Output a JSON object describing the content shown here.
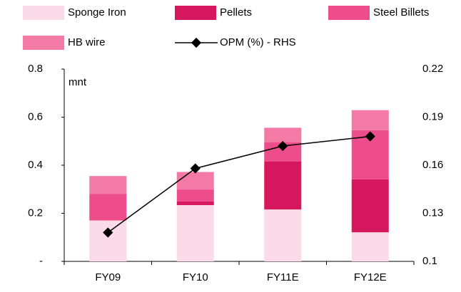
{
  "chart_data": {
    "type": "bar",
    "stacked": true,
    "annotation": "mnt",
    "categories": [
      "FY09",
      "FY10",
      "FY11E",
      "FY12E"
    ],
    "series": [
      {
        "name": "Sponge Iron",
        "color": "#fbdbe7",
        "values": [
          0.17,
          0.234,
          0.216,
          0.121
        ]
      },
      {
        "name": "Pellets",
        "color": "#d6175e",
        "values": [
          0,
          0.015,
          0.2,
          0.22
        ]
      },
      {
        "name": "Steel Billets",
        "color": "#ee4d8c",
        "values": [
          0.11,
          0.05,
          0.08,
          0.205
        ]
      },
      {
        "name": "HB wire",
        "color": "#f47aa6",
        "values": [
          0.075,
          0.073,
          0.06,
          0.083
        ]
      },
      {
        "name": "OPM (%) - RHS",
        "type": "line",
        "axis": "y2",
        "color": "#000000",
        "values": [
          0.118,
          0.158,
          0.172,
          0.178
        ]
      }
    ],
    "ylim": [
      0,
      0.8
    ],
    "yticks": [
      {
        "value": 0,
        "label": "-"
      },
      0.2,
      0.4,
      0.6,
      0.8
    ],
    "y2lim": [
      0.1,
      0.22
    ],
    "y2ticks": [
      0.1,
      0.13,
      0.16,
      0.19,
      0.22
    ],
    "grid": false
  }
}
